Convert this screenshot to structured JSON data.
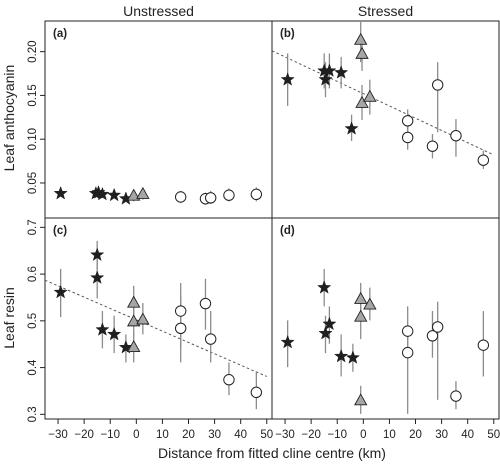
{
  "colors": {
    "star": "#1f1f1f",
    "triangle": "#a6a6a6",
    "circle": "#ffffff",
    "stroke": "#222222",
    "errorbar": "#8c8c8c",
    "fit": "#555555"
  },
  "chart_data": {
    "type": "scatter",
    "column_titles": [
      "Unstressed",
      "Stressed"
    ],
    "xlabel": "Distance from fitted cline centre (km)",
    "xlim": [
      -35,
      52
    ],
    "xticks": [
      "-30",
      "-20",
      "-10",
      "0",
      "10",
      "20",
      "30",
      "40",
      "50"
    ],
    "rows": [
      {
        "ylabel": "Leaf anthocyanin",
        "ylim": [
          0.01,
          0.235
        ],
        "yticks": [
          "0.05",
          "0.10",
          "0.15",
          "0.20"
        ]
      },
      {
        "ylabel": "Leaf resin",
        "ylim": [
          0.29,
          0.72
        ],
        "yticks": [
          "0.3",
          "0.4",
          "0.5",
          "0.6",
          "0.7"
        ]
      }
    ],
    "panels": [
      {
        "tag": "(a)",
        "row": 0,
        "col": 0,
        "fit": null,
        "points": [
          {
            "shape": "star",
            "x": -29,
            "y": 0.038,
            "lo": null,
            "hi": null
          },
          {
            "shape": "star",
            "x": -15.5,
            "y": 0.038,
            "lo": null,
            "hi": null
          },
          {
            "shape": "star",
            "x": -14.5,
            "y": 0.039,
            "lo": null,
            "hi": null
          },
          {
            "shape": "star",
            "x": -13,
            "y": 0.037,
            "lo": null,
            "hi": null
          },
          {
            "shape": "star",
            "x": -8.5,
            "y": 0.036,
            "lo": null,
            "hi": null
          },
          {
            "shape": "star",
            "x": -4,
            "y": 0.032,
            "lo": null,
            "hi": null
          },
          {
            "shape": "triangle",
            "x": -1,
            "y": 0.035,
            "lo": 0.029,
            "hi": 0.042
          },
          {
            "shape": "triangle",
            "x": 2.5,
            "y": 0.037,
            "lo": 0.031,
            "hi": 0.043
          },
          {
            "shape": "circle",
            "x": 17,
            "y": 0.034,
            "lo": 0.027,
            "hi": 0.041
          },
          {
            "shape": "circle",
            "x": 26.5,
            "y": 0.032,
            "lo": 0.025,
            "hi": 0.039
          },
          {
            "shape": "circle",
            "x": 28.5,
            "y": 0.033,
            "lo": 0.026,
            "hi": 0.041
          },
          {
            "shape": "circle",
            "x": 35.5,
            "y": 0.036,
            "lo": 0.029,
            "hi": 0.044
          },
          {
            "shape": "circle",
            "x": 46,
            "y": 0.037,
            "lo": 0.029,
            "hi": 0.045
          }
        ]
      },
      {
        "tag": "(b)",
        "row": 0,
        "col": 1,
        "fit": [
          [
            -35,
            0.201
          ],
          [
            50,
            0.082
          ]
        ],
        "points": [
          {
            "shape": "star",
            "x": -29,
            "y": 0.168,
            "lo": 0.138,
            "hi": 0.198
          },
          {
            "shape": "star",
            "x": -15,
            "y": 0.178,
            "lo": 0.158,
            "hi": 0.198
          },
          {
            "shape": "star",
            "x": -14.5,
            "y": 0.168,
            "lo": 0.148,
            "hi": 0.188
          },
          {
            "shape": "star",
            "x": -13,
            "y": 0.178,
            "lo": 0.158,
            "hi": 0.198
          },
          {
            "shape": "star",
            "x": -8.5,
            "y": 0.176,
            "lo": 0.158,
            "hi": 0.194
          },
          {
            "shape": "star",
            "x": -4.5,
            "y": 0.112,
            "lo": 0.098,
            "hi": 0.128
          },
          {
            "shape": "triangle",
            "x": -1,
            "y": 0.213,
            "lo": 0.188,
            "hi": 0.235
          },
          {
            "shape": "triangle",
            "x": -0.5,
            "y": 0.197,
            "lo": 0.178,
            "hi": 0.215
          },
          {
            "shape": "triangle",
            "x": -0.5,
            "y": 0.141,
            "lo": 0.122,
            "hi": 0.162
          },
          {
            "shape": "triangle",
            "x": 2.5,
            "y": 0.148,
            "lo": 0.128,
            "hi": 0.168
          },
          {
            "shape": "circle",
            "x": 17,
            "y": 0.121,
            "lo": 0.108,
            "hi": 0.134
          },
          {
            "shape": "circle",
            "x": 17,
            "y": 0.102,
            "lo": 0.088,
            "hi": 0.116
          },
          {
            "shape": "circle",
            "x": 26.5,
            "y": 0.092,
            "lo": 0.078,
            "hi": 0.106
          },
          {
            "shape": "circle",
            "x": 28.5,
            "y": 0.162,
            "lo": 0.108,
            "hi": 0.188
          },
          {
            "shape": "circle",
            "x": 35.5,
            "y": 0.104,
            "lo": 0.08,
            "hi": 0.123
          },
          {
            "shape": "circle",
            "x": 46,
            "y": 0.076,
            "lo": 0.066,
            "hi": 0.087
          }
        ]
      },
      {
        "tag": "(c)",
        "row": 1,
        "col": 0,
        "fit": [
          [
            -35,
            0.587
          ],
          [
            50,
            0.381
          ]
        ],
        "points": [
          {
            "shape": "star",
            "x": -29,
            "y": 0.561,
            "lo": 0.508,
            "hi": 0.611
          },
          {
            "shape": "star",
            "x": -15,
            "y": 0.641,
            "lo": 0.611,
            "hi": 0.671
          },
          {
            "shape": "star",
            "x": -15,
            "y": 0.592,
            "lo": 0.548,
            "hi": 0.641
          },
          {
            "shape": "star",
            "x": -13,
            "y": 0.481,
            "lo": 0.441,
            "hi": 0.521
          },
          {
            "shape": "star",
            "x": -8.5,
            "y": 0.471,
            "lo": 0.431,
            "hi": 0.511
          },
          {
            "shape": "star",
            "x": -4,
            "y": 0.443,
            "lo": 0.411,
            "hi": 0.471
          },
          {
            "shape": "triangle",
            "x": -1,
            "y": 0.538,
            "lo": 0.501,
            "hi": 0.575
          },
          {
            "shape": "triangle",
            "x": -1,
            "y": 0.498,
            "lo": 0.468,
            "hi": 0.531
          },
          {
            "shape": "triangle",
            "x": -1,
            "y": 0.443,
            "lo": 0.411,
            "hi": 0.474
          },
          {
            "shape": "triangle",
            "x": 2.5,
            "y": 0.502,
            "lo": 0.471,
            "hi": 0.538
          },
          {
            "shape": "circle",
            "x": 17,
            "y": 0.521,
            "lo": 0.441,
            "hi": 0.581
          },
          {
            "shape": "circle",
            "x": 17,
            "y": 0.484,
            "lo": 0.411,
            "hi": 0.552
          },
          {
            "shape": "circle",
            "x": 26.5,
            "y": 0.537,
            "lo": 0.481,
            "hi": 0.59
          },
          {
            "shape": "circle",
            "x": 28.5,
            "y": 0.461,
            "lo": 0.411,
            "hi": 0.521
          },
          {
            "shape": "circle",
            "x": 35.5,
            "y": 0.374,
            "lo": 0.341,
            "hi": 0.411
          },
          {
            "shape": "circle",
            "x": 46,
            "y": 0.347,
            "lo": 0.311,
            "hi": 0.391
          }
        ]
      },
      {
        "tag": "(d)",
        "row": 1,
        "col": 1,
        "fit": null,
        "points": [
          {
            "shape": "star",
            "x": -29,
            "y": 0.454,
            "lo": 0.401,
            "hi": 0.501
          },
          {
            "shape": "star",
            "x": -15,
            "y": 0.571,
            "lo": 0.531,
            "hi": 0.611
          },
          {
            "shape": "star",
            "x": -14.5,
            "y": 0.473,
            "lo": 0.431,
            "hi": 0.511
          },
          {
            "shape": "star",
            "x": -13,
            "y": 0.493,
            "lo": 0.451,
            "hi": 0.531
          },
          {
            "shape": "star",
            "x": -8.5,
            "y": 0.424,
            "lo": 0.381,
            "hi": 0.471
          },
          {
            "shape": "star",
            "x": -4,
            "y": 0.421,
            "lo": 0.391,
            "hi": 0.451
          },
          {
            "shape": "triangle",
            "x": -1,
            "y": 0.546,
            "lo": 0.511,
            "hi": 0.581
          },
          {
            "shape": "triangle",
            "x": -1,
            "y": 0.508,
            "lo": 0.461,
            "hi": 0.551
          },
          {
            "shape": "triangle",
            "x": -1,
            "y": 0.329,
            "lo": 0.301,
            "hi": 0.361
          },
          {
            "shape": "triangle",
            "x": 2.5,
            "y": 0.534,
            "lo": 0.501,
            "hi": 0.571
          },
          {
            "shape": "circle",
            "x": 17,
            "y": 0.478,
            "lo": 0.421,
            "hi": 0.531
          },
          {
            "shape": "circle",
            "x": 17,
            "y": 0.432,
            "lo": 0.301,
            "hi": 0.481
          },
          {
            "shape": "circle",
            "x": 26.5,
            "y": 0.468,
            "lo": 0.421,
            "hi": 0.521
          },
          {
            "shape": "circle",
            "x": 28.5,
            "y": 0.487,
            "lo": 0.331,
            "hi": 0.541
          },
          {
            "shape": "circle",
            "x": 35.5,
            "y": 0.339,
            "lo": 0.311,
            "hi": 0.371
          },
          {
            "shape": "circle",
            "x": 46,
            "y": 0.448,
            "lo": 0.381,
            "hi": 0.521
          }
        ]
      }
    ]
  }
}
